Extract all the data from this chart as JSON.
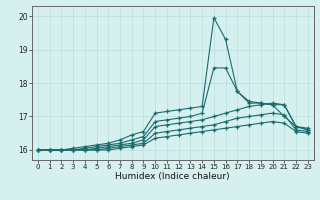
{
  "xlabel": "Humidex (Indice chaleur)",
  "background_color": "#d6f0ef",
  "line_color": "#1a6b6b",
  "grid_color": "#b8dede",
  "xlim": [
    -0.5,
    23.5
  ],
  "ylim": [
    15.7,
    20.3
  ],
  "yticks": [
    16,
    17,
    18,
    19,
    20
  ],
  "xticks": [
    0,
    1,
    2,
    3,
    4,
    5,
    6,
    7,
    8,
    9,
    10,
    11,
    12,
    13,
    14,
    15,
    16,
    17,
    18,
    19,
    20,
    21,
    22,
    23
  ],
  "lines": [
    {
      "x": [
        0,
        1,
        2,
        3,
        4,
        5,
        6,
        7,
        8,
        9,
        10,
        11,
        12,
        13,
        14,
        15,
        16,
        17,
        18,
        19,
        20,
        21,
        22,
        23
      ],
      "y": [
        16.0,
        16.0,
        16.0,
        16.05,
        16.1,
        16.15,
        16.2,
        16.3,
        16.45,
        16.55,
        17.1,
        17.15,
        17.2,
        17.25,
        17.3,
        19.95,
        19.3,
        17.75,
        17.4,
        17.4,
        17.35,
        17.0,
        16.7,
        16.65
      ]
    },
    {
      "x": [
        0,
        1,
        2,
        3,
        4,
        5,
        6,
        7,
        8,
        9,
        10,
        11,
        12,
        13,
        14,
        15,
        16,
        17,
        18,
        19,
        20,
        21,
        22,
        23
      ],
      "y": [
        16.0,
        16.0,
        16.0,
        16.0,
        16.05,
        16.1,
        16.15,
        16.2,
        16.3,
        16.4,
        16.85,
        16.9,
        16.95,
        17.0,
        17.1,
        18.45,
        18.45,
        17.75,
        17.45,
        17.4,
        17.35,
        17.35,
        16.7,
        16.6
      ]
    },
    {
      "x": [
        0,
        1,
        2,
        3,
        4,
        5,
        6,
        7,
        8,
        9,
        10,
        11,
        12,
        13,
        14,
        15,
        16,
        17,
        18,
        19,
        20,
        21,
        22,
        23
      ],
      "y": [
        16.0,
        16.0,
        16.0,
        16.0,
        16.0,
        16.05,
        16.1,
        16.15,
        16.2,
        16.3,
        16.7,
        16.75,
        16.8,
        16.85,
        16.9,
        17.0,
        17.1,
        17.2,
        17.3,
        17.35,
        17.4,
        17.35,
        16.7,
        16.6
      ]
    },
    {
      "x": [
        0,
        1,
        2,
        3,
        4,
        5,
        6,
        7,
        8,
        9,
        10,
        11,
        12,
        13,
        14,
        15,
        16,
        17,
        18,
        19,
        20,
        21,
        22,
        23
      ],
      "y": [
        16.0,
        16.0,
        16.0,
        16.0,
        16.0,
        16.0,
        16.05,
        16.1,
        16.15,
        16.2,
        16.5,
        16.55,
        16.6,
        16.65,
        16.7,
        16.75,
        16.85,
        16.95,
        17.0,
        17.05,
        17.1,
        17.05,
        16.6,
        16.55
      ]
    },
    {
      "x": [
        0,
        1,
        2,
        3,
        4,
        5,
        6,
        7,
        8,
        9,
        10,
        11,
        12,
        13,
        14,
        15,
        16,
        17,
        18,
        19,
        20,
        21,
        22,
        23
      ],
      "y": [
        16.0,
        16.0,
        16.0,
        16.0,
        16.0,
        16.0,
        16.0,
        16.05,
        16.1,
        16.15,
        16.35,
        16.4,
        16.45,
        16.5,
        16.55,
        16.6,
        16.65,
        16.7,
        16.75,
        16.8,
        16.85,
        16.8,
        16.55,
        16.5
      ]
    }
  ]
}
